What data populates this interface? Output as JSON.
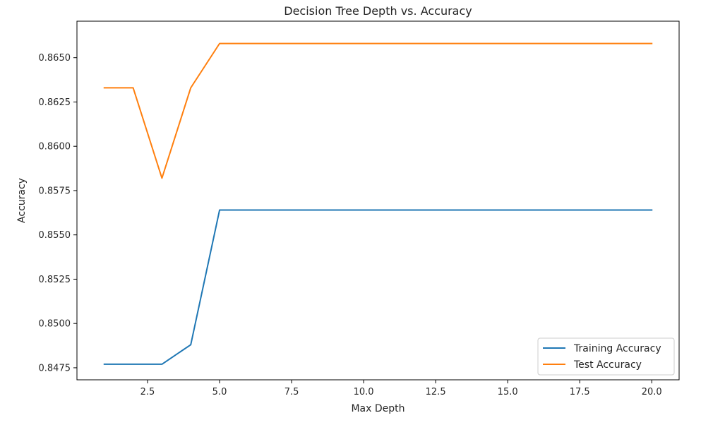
{
  "chart_data": {
    "type": "line",
    "title": "Decision Tree Depth vs. Accuracy",
    "xlabel": "Max Depth",
    "ylabel": "Accuracy",
    "x": [
      1,
      2,
      3,
      4,
      5,
      6,
      7,
      8,
      9,
      10,
      11,
      12,
      13,
      14,
      15,
      16,
      17,
      18,
      19,
      20
    ],
    "series": [
      {
        "name": "Training Accuracy",
        "color": "#1f77b4",
        "values": [
          0.8477,
          0.8477,
          0.8477,
          0.8488,
          0.8564,
          0.8564,
          0.8564,
          0.8564,
          0.8564,
          0.8564,
          0.8564,
          0.8564,
          0.8564,
          0.8564,
          0.8564,
          0.8564,
          0.8564,
          0.8564,
          0.8564,
          0.8564
        ]
      },
      {
        "name": "Test Accuracy",
        "color": "#ff7f0e",
        "values": [
          0.8633,
          0.8633,
          0.8582,
          0.8633,
          0.8658,
          0.8658,
          0.8658,
          0.8658,
          0.8658,
          0.8658,
          0.8658,
          0.8658,
          0.8658,
          0.8658,
          0.8658,
          0.8658,
          0.8658,
          0.8658,
          0.8658,
          0.8658
        ]
      }
    ],
    "xlim": [
      0.05,
      20.95
    ],
    "ylim": [
      0.84682,
      0.86706
    ],
    "xticks": [
      2.5,
      5.0,
      7.5,
      10.0,
      12.5,
      15.0,
      17.5,
      20.0
    ],
    "xtick_labels": [
      "2.5",
      "5.0",
      "7.5",
      "10.0",
      "12.5",
      "15.0",
      "17.5",
      "20.0"
    ],
    "yticks": [
      0.8475,
      0.85,
      0.8525,
      0.855,
      0.8575,
      0.86,
      0.8625,
      0.865
    ],
    "ytick_labels": [
      "0.8475",
      "0.8500",
      "0.8525",
      "0.8550",
      "0.8575",
      "0.8600",
      "0.8625",
      "0.8650"
    ],
    "grid": false,
    "legend_position": "bottom-right"
  }
}
